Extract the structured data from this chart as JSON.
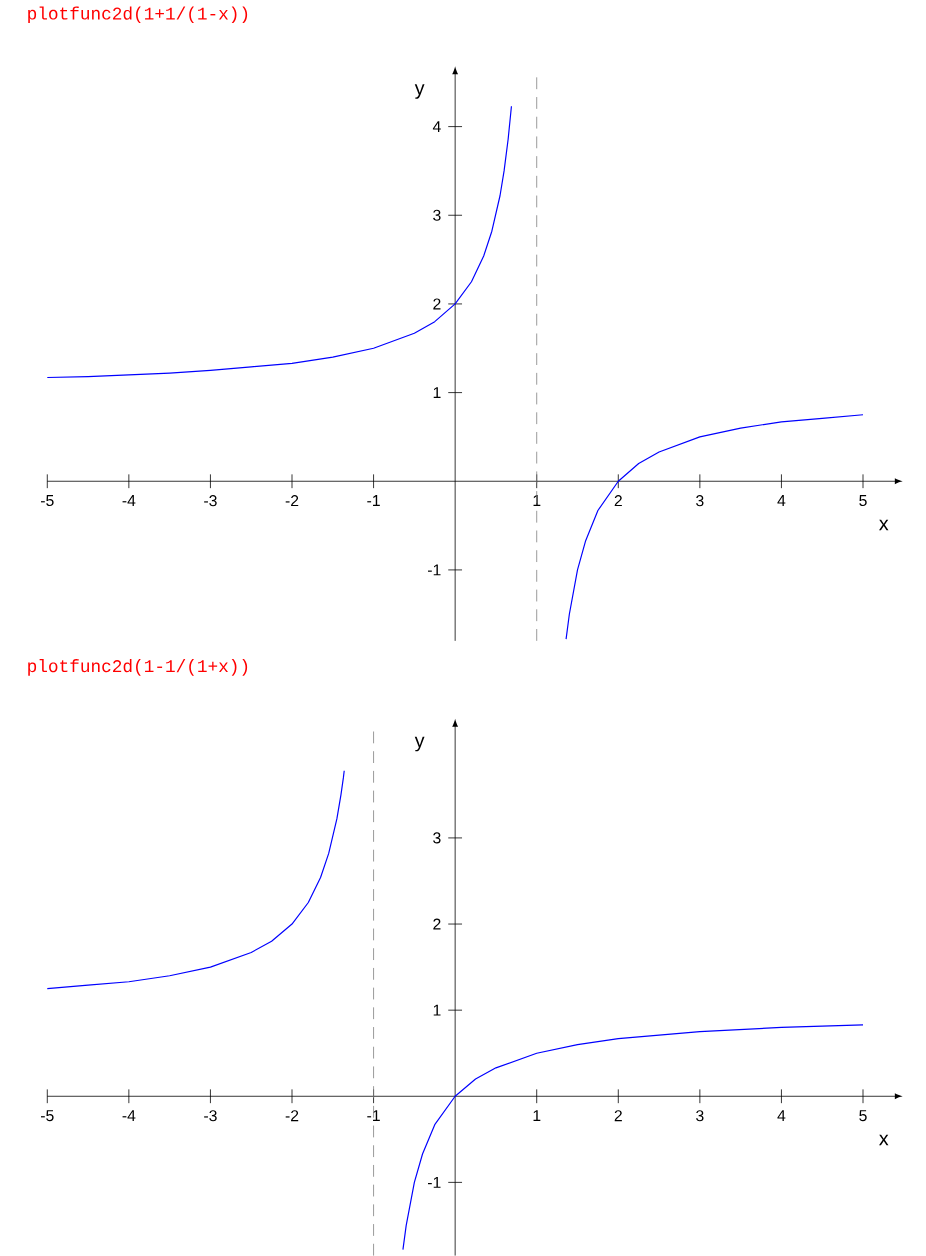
{
  "chart_data": [
    {
      "type": "line",
      "title": "plotfunc2d(1+1/(1-x))",
      "xlabel": "x",
      "ylabel": "y",
      "x": [
        -5,
        -4.5,
        -4,
        -3.5,
        -3,
        -2.5,
        -2,
        -1.5,
        -1,
        -0.5,
        -0.25,
        0,
        0.2,
        0.35,
        0.45,
        0.55,
        0.6,
        0.65,
        0.69,
        1,
        1.36,
        1.4,
        1.5,
        1.6,
        1.75,
        2,
        2.25,
        2.5,
        3,
        3.5,
        4,
        4.5,
        5
      ],
      "series": [
        {
          "color": "#0000ff",
          "values": [
            1.17,
            1.18,
            1.2,
            1.22,
            1.25,
            1.29,
            1.33,
            1.4,
            1.5,
            1.67,
            1.8,
            2,
            2.25,
            2.54,
            2.82,
            3.22,
            3.5,
            3.86,
            4.23,
            null,
            -1.78,
            -1.5,
            -1,
            -0.67,
            -0.33,
            0,
            0.2,
            0.33,
            0.5,
            0.6,
            0.67,
            0.71,
            0.75
          ]
        }
      ],
      "xlim": [
        -5,
        5.4
      ],
      "ylim": [
        -1.8,
        4.6
      ],
      "xticks": [
        -5,
        -4,
        -3,
        -2,
        -1,
        1,
        2,
        3,
        4,
        5
      ],
      "yticks": [
        -1,
        1,
        2,
        3,
        4
      ],
      "ref_lines": [
        {
          "axis": "x",
          "value": 1,
          "color": "#808080",
          "line_style": "dashed"
        }
      ]
    },
    {
      "type": "line",
      "title": "plotfunc2d(1-1/(1+x))",
      "xlabel": "x",
      "ylabel": "y",
      "x": [
        -5,
        -4.5,
        -4,
        -3.5,
        -3,
        -2.5,
        -2.25,
        -2,
        -1.8,
        -1.65,
        -1.55,
        -1.45,
        -1.4,
        -1.37,
        -1.36,
        -1,
        -0.64,
        -0.6,
        -0.5,
        -0.4,
        -0.25,
        0,
        0.25,
        0.5,
        1,
        1.5,
        2,
        3,
        4,
        5
      ],
      "series": [
        {
          "color": "#0000ff",
          "values": [
            1.25,
            1.29,
            1.33,
            1.4,
            1.5,
            1.67,
            1.8,
            2,
            2.25,
            2.54,
            2.82,
            3.22,
            3.5,
            3.7,
            3.78,
            null,
            -1.78,
            -1.5,
            -1,
            -0.67,
            -0.33,
            0,
            0.2,
            0.33,
            0.5,
            0.6,
            0.67,
            0.75,
            0.8,
            0.83
          ]
        }
      ],
      "xlim": [
        -5,
        5.4
      ],
      "ylim": [
        -1.85,
        4.3
      ],
      "xticks": [
        -5,
        -4,
        -3,
        -2,
        -1,
        1,
        2,
        3,
        4,
        5
      ],
      "yticks": [
        -1,
        1,
        2,
        3
      ],
      "ref_lines": [
        {
          "axis": "x",
          "value": -1,
          "color": "#808080",
          "line_style": "dashed"
        }
      ]
    }
  ]
}
